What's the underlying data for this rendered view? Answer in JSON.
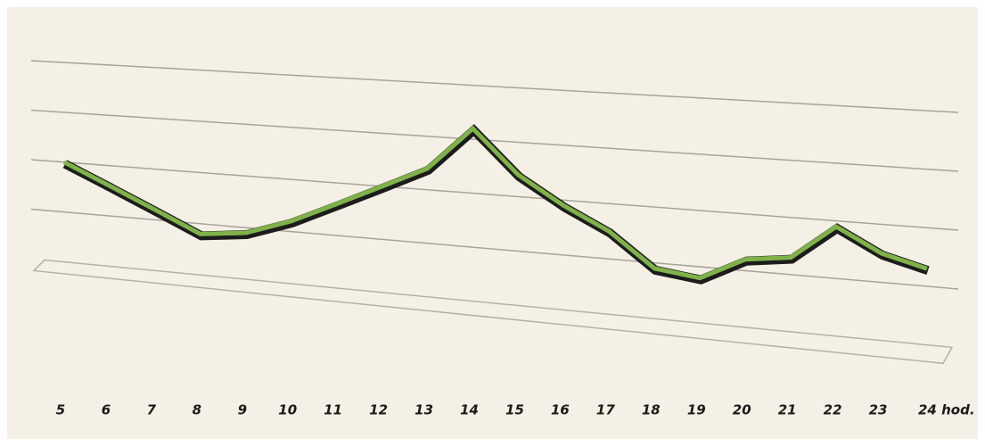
{
  "chart_data": {
    "type": "line",
    "categories": [
      "5",
      "6",
      "7",
      "8",
      "9",
      "10",
      "11",
      "12",
      "13",
      "14",
      "15",
      "16",
      "17",
      "18",
      "19",
      "20",
      "21",
      "22",
      "23",
      "24 hod."
    ],
    "values": [
      2.0,
      1.6,
      1.2,
      0.8,
      0.9,
      1.2,
      1.6,
      2.0,
      2.4,
      3.2,
      2.4,
      1.9,
      1.5,
      0.9,
      0.8,
      1.2,
      1.3,
      1.9,
      1.5,
      1.3
    ],
    "color": "#7fb24a",
    "ylim": [
      0,
      4
    ],
    "yticks": [
      0,
      1,
      2,
      3,
      4
    ],
    "grid": true
  }
}
